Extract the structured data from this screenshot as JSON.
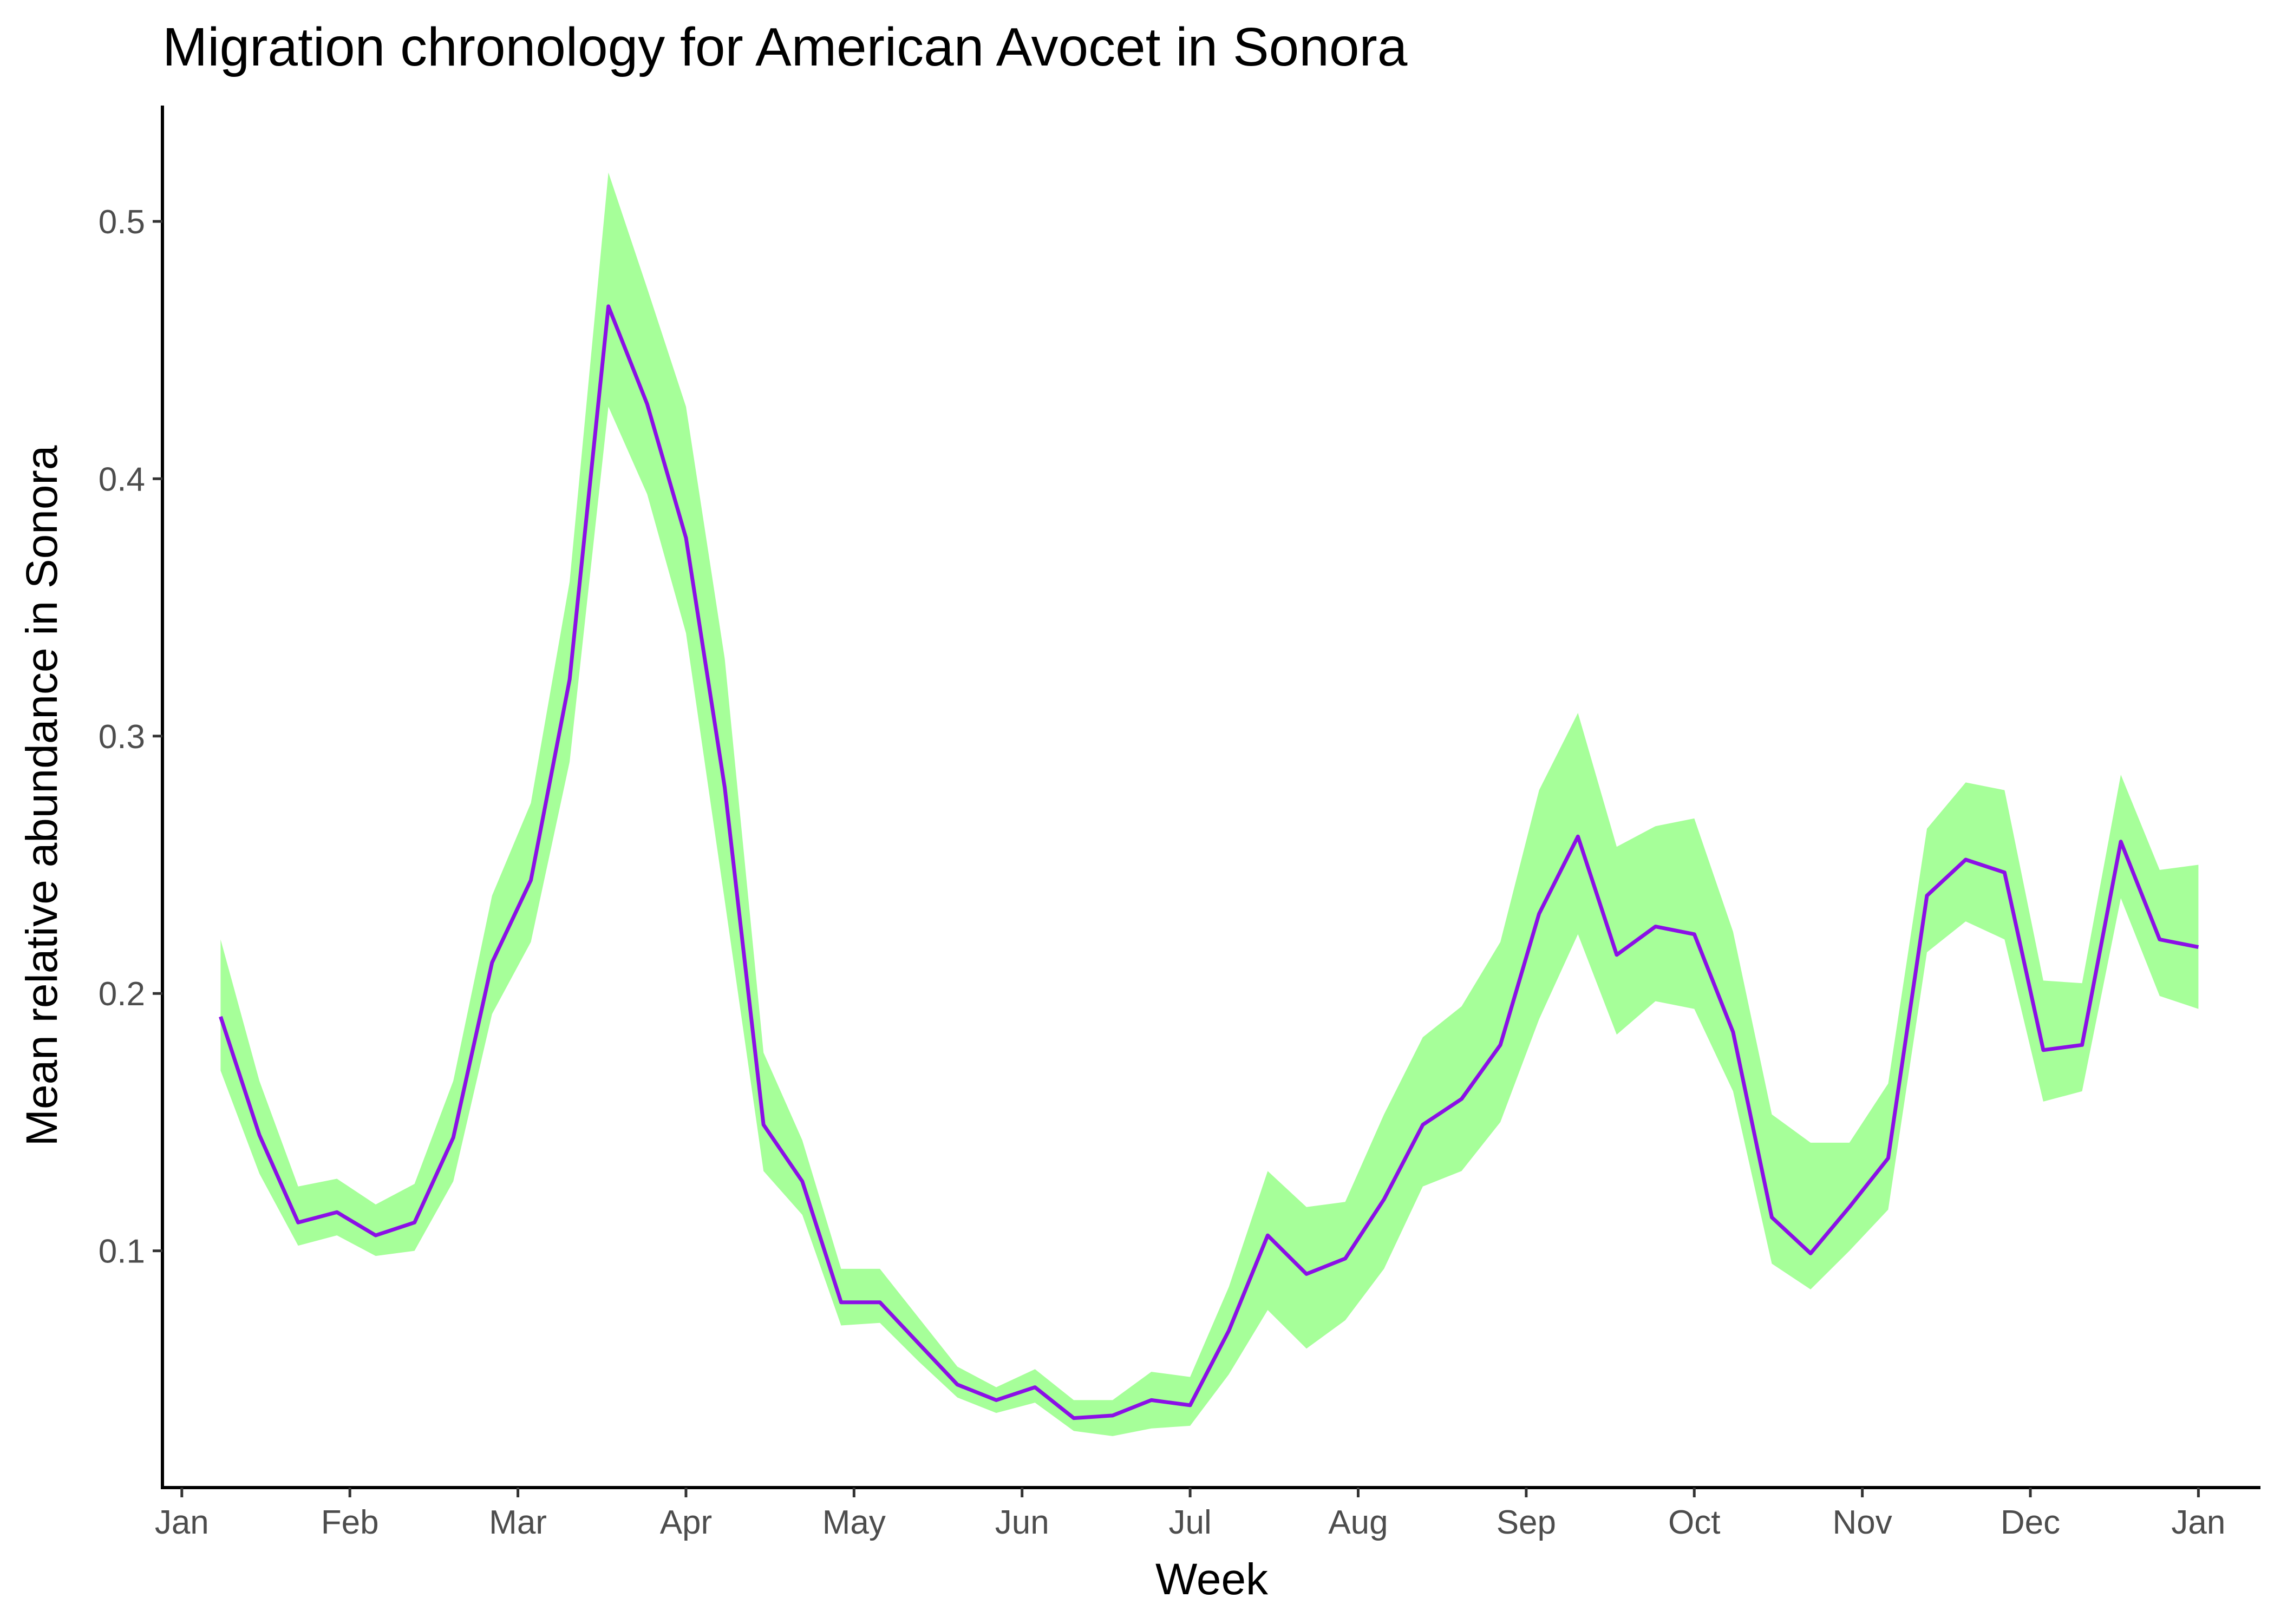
{
  "chart_data": {
    "type": "area",
    "title": "Migration chronology for American Avocet in Sonora",
    "xlabel": "Week",
    "ylabel": "Mean relative abundance in Sonora",
    "x_tick_labels": [
      "Jan",
      "Feb",
      "Mar",
      "Apr",
      "May",
      "Jun",
      "Jul",
      "Aug",
      "Sep",
      "Oct",
      "Nov",
      "Dec",
      "Jan"
    ],
    "y_ticks": [
      0.1,
      0.2,
      0.3,
      0.4,
      0.5
    ],
    "y_tick_labels": [
      "0.1",
      "0.2",
      "0.3",
      "0.4",
      "0.5"
    ],
    "ylim": [
      0.008,
      0.545
    ],
    "xlim_weeks": [
      -0.5,
      53.6
    ],
    "grid": false,
    "line_color": "#8B10E6",
    "band_color": "#A6FF99",
    "weeks": [
      1,
      2,
      3,
      4,
      5,
      6,
      7,
      8,
      9,
      10,
      11,
      12,
      13,
      14,
      15,
      16,
      17,
      18,
      19,
      20,
      21,
      22,
      23,
      24,
      25,
      26,
      27,
      28,
      29,
      30,
      31,
      32,
      33,
      34,
      35,
      36,
      37,
      38,
      39,
      40,
      41,
      42,
      43,
      44,
      45,
      46,
      47,
      48,
      49,
      50,
      51,
      52
    ],
    "series": [
      {
        "values": [
          0.191,
          0.145,
          0.111,
          0.115,
          0.106,
          0.111,
          0.144,
          0.212,
          0.244,
          0.322,
          0.467,
          0.429,
          0.377,
          0.28,
          0.149,
          0.127,
          0.08,
          0.08,
          0.064,
          0.048,
          0.042,
          0.047,
          0.035,
          0.036,
          0.042,
          0.04,
          0.069,
          0.106,
          0.091,
          0.097,
          0.12,
          0.149,
          0.159,
          0.18,
          0.231,
          0.261,
          0.215,
          0.226,
          0.223,
          0.185,
          0.113,
          0.099,
          0.117,
          0.136,
          0.238,
          0.252,
          0.247,
          0.178,
          0.18,
          0.259,
          0.221,
          0.218
        ],
        "lower": [
          0.17,
          0.13,
          0.102,
          0.106,
          0.098,
          0.1,
          0.127,
          0.192,
          0.22,
          0.29,
          0.428,
          0.394,
          0.34,
          0.236,
          0.131,
          0.114,
          0.071,
          0.072,
          0.057,
          0.043,
          0.037,
          0.041,
          0.03,
          0.028,
          0.031,
          0.032,
          0.052,
          0.077,
          0.062,
          0.073,
          0.093,
          0.125,
          0.131,
          0.15,
          0.19,
          0.223,
          0.184,
          0.197,
          0.194,
          0.162,
          0.095,
          0.085,
          0.1,
          0.116,
          0.216,
          0.228,
          0.221,
          0.158,
          0.162,
          0.237,
          0.199,
          0.194
        ],
        "upper": [
          0.221,
          0.166,
          0.125,
          0.128,
          0.118,
          0.126,
          0.166,
          0.238,
          0.274,
          0.36,
          0.519,
          0.474,
          0.428,
          0.33,
          0.177,
          0.143,
          0.093,
          0.093,
          0.074,
          0.055,
          0.047,
          0.054,
          0.042,
          0.042,
          0.053,
          0.051,
          0.086,
          0.131,
          0.117,
          0.119,
          0.153,
          0.183,
          0.195,
          0.22,
          0.279,
          0.309,
          0.257,
          0.265,
          0.268,
          0.224,
          0.153,
          0.142,
          0.142,
          0.165,
          0.264,
          0.282,
          0.279,
          0.205,
          0.204,
          0.285,
          0.248,
          0.25
        ]
      }
    ]
  }
}
